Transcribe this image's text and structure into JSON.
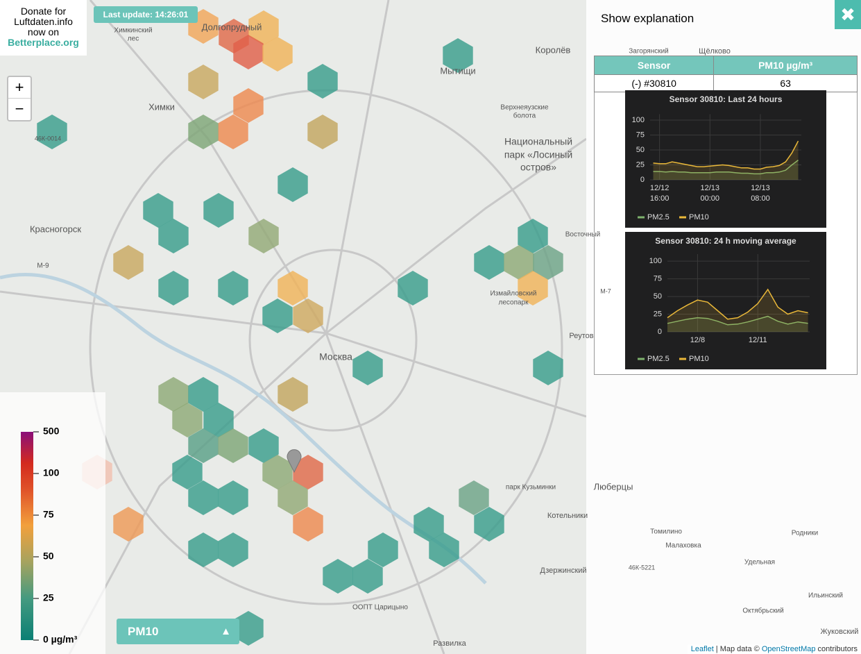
{
  "donate": {
    "lines": [
      "Donate for",
      "Luftdaten.info",
      "now on"
    ],
    "link": "Betterplace.org"
  },
  "last_update": "Last update: 14:26:01",
  "zoom": [
    "+",
    "−"
  ],
  "map_labels": [
    "Долгопрудный",
    "Химки",
    "Мытищи",
    "Королёв",
    "Красногорск",
    "Москва",
    "Национальный",
    "парк «Лосиный",
    "остров»",
    "Люберцы",
    "Котельники",
    "Дзержинский",
    "Развилка",
    "Измайловский",
    "лесопарк",
    "парк Кузьминки",
    "Томилино",
    "Малаховка",
    "Реутов",
    "Химкинский",
    "лес",
    "Верхнеяузские",
    "болота",
    "ООПТ Царицыно",
    "Жуковский",
    "Октябрьский",
    "Ильинский",
    "Родники",
    "Удельная",
    "Щёлково",
    "Загорянский",
    "М-9",
    "46К-0014",
    "46К-5221",
    "М-7",
    "Восточный"
  ],
  "legend": {
    "ticks": [
      500,
      100,
      75,
      50,
      25,
      {
        "value": 0,
        "label": "0 µg/m³"
      }
    ]
  },
  "selector": {
    "label": "PM10",
    "arrow": "▲"
  },
  "panel": {
    "explanation": "Show explanation",
    "close": "✖",
    "table": {
      "header": [
        "Sensor",
        "PM10 µg/m³"
      ],
      "rows": [
        [
          "(-) #30810",
          "63"
        ]
      ]
    }
  },
  "attribution": {
    "leaflet": "Leaflet",
    "text": " | Map data © ",
    "osm": "OpenStreetMap",
    "contributors": " contributors"
  },
  "chart_data": [
    {
      "type": "line",
      "title": "Sensor 30810: Last 24 hours",
      "x": [
        "12/12 15:00",
        "12/12 16:00",
        "12/12 17:00",
        "12/12 18:00",
        "12/12 19:00",
        "12/12 20:00",
        "12/12 21:00",
        "12/12 22:00",
        "12/12 23:00",
        "12/13 00:00",
        "12/13 01:00",
        "12/13 02:00",
        "12/13 03:00",
        "12/13 04:00",
        "12/13 05:00",
        "12/13 06:00",
        "12/13 07:00",
        "12/13 08:00",
        "12/13 09:00",
        "12/13 10:00",
        "12/13 11:00",
        "12/13 12:00",
        "12/13 13:00",
        "12/13 14:00"
      ],
      "xlim": [
        "12/12 14:30",
        "12/13 14:30"
      ],
      "xticks": [
        {
          "value": "12/12 16:00",
          "label": "12/12\n16:00"
        },
        {
          "value": "12/13 00:00",
          "label": "12/13\n00:00"
        },
        {
          "value": "12/13 08:00",
          "label": "12/13\n08:00"
        }
      ],
      "ylim": [
        0,
        110
      ],
      "yticks": [
        0,
        25,
        50,
        75,
        100
      ],
      "grid": true,
      "series": [
        {
          "name": "PM2.5",
          "color": "#7eb26d",
          "values": [
            14,
            14,
            13,
            14,
            13,
            13,
            12,
            12,
            12,
            12,
            13,
            13,
            13,
            12,
            11,
            11,
            10,
            10,
            12,
            12,
            13,
            16,
            25,
            33
          ]
        },
        {
          "name": "PM10",
          "color": "#eab839",
          "values": [
            28,
            27,
            27,
            30,
            28,
            26,
            24,
            22,
            22,
            23,
            24,
            25,
            24,
            22,
            20,
            20,
            18,
            18,
            21,
            22,
            24,
            30,
            45,
            65
          ]
        }
      ]
    },
    {
      "type": "line",
      "title": "Sensor 30810: 24 h moving average",
      "x": [
        "12/6 12:00",
        "12/7 00:00",
        "12/7 12:00",
        "12/8 00:00",
        "12/8 12:00",
        "12/9 00:00",
        "12/9 12:00",
        "12/10 00:00",
        "12/10 12:00",
        "12/11 00:00",
        "12/11 12:00",
        "12/12 00:00",
        "12/12 12:00",
        "12/13 00:00",
        "12/13 12:00"
      ],
      "xlim": [
        "12/6 12:00",
        "12/13 14:00"
      ],
      "xticks": [
        {
          "value": "12/8 00:00",
          "label": "12/8"
        },
        {
          "value": "12/11 00:00",
          "label": "12/11"
        }
      ],
      "ylim": [
        0,
        110
      ],
      "yticks": [
        0,
        25,
        50,
        75,
        100
      ],
      "grid": true,
      "series": [
        {
          "name": "PM2.5",
          "color": "#7eb26d",
          "values": [
            12,
            15,
            18,
            20,
            19,
            15,
            10,
            11,
            14,
            18,
            22,
            15,
            11,
            14,
            12
          ]
        },
        {
          "name": "PM10",
          "color": "#eab839",
          "values": [
            20,
            30,
            38,
            45,
            42,
            30,
            18,
            20,
            28,
            40,
            60,
            35,
            25,
            30,
            27
          ]
        }
      ]
    }
  ]
}
